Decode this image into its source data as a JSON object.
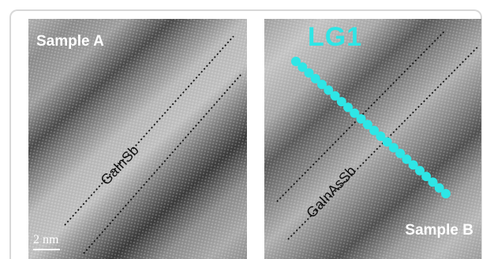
{
  "panels": {
    "a": {
      "sample_label": "Sample A",
      "layer_label": "GaInSb",
      "scale_label": "2 nm"
    },
    "b": {
      "sample_label": "Sample B",
      "layer_label": "GaInAsSb",
      "line_label": "LG1"
    }
  },
  "colors": {
    "line_marker": "#2ee6e6",
    "sample_text": "#ffffff",
    "layer_text": "#111111",
    "frame": "#d8d8d8"
  }
}
